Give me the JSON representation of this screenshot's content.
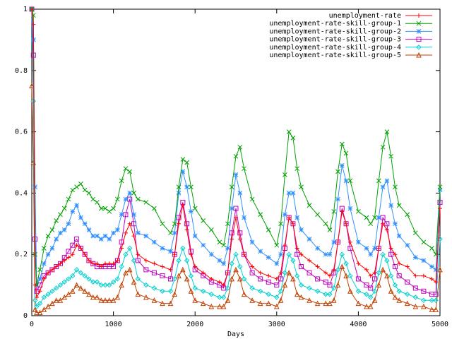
{
  "chart_data": {
    "type": "line",
    "xlabel": "Days",
    "ylabel": "",
    "title": "",
    "xlim": [
      0,
      5000
    ],
    "ylim": [
      0,
      1
    ],
    "x_ticks": [
      "0",
      "1000",
      "2000",
      "3000",
      "4000",
      "5000"
    ],
    "y_ticks": [
      "0",
      "0.2",
      "0.4",
      "0.6",
      "0.8",
      "1"
    ],
    "grid": false,
    "legend_position": "top-right",
    "series": [
      {
        "name": "unemployment-rate",
        "color": "#ff0000",
        "marker": "plus",
        "x": [
          0,
          20,
          40,
          60,
          100,
          150,
          200,
          250,
          300,
          350,
          400,
          450,
          500,
          550,
          600,
          650,
          700,
          750,
          800,
          850,
          900,
          950,
          1000,
          1050,
          1100,
          1150,
          1200,
          1250,
          1300,
          1400,
          1500,
          1600,
          1700,
          1750,
          1800,
          1850,
          1900,
          1950,
          2000,
          2100,
          2200,
          2300,
          2350,
          2400,
          2450,
          2500,
          2550,
          2600,
          2700,
          2800,
          2900,
          3000,
          3050,
          3100,
          3150,
          3200,
          3250,
          3300,
          3400,
          3500,
          3600,
          3650,
          3700,
          3750,
          3800,
          3850,
          3900,
          4000,
          4100,
          4150,
          4200,
          4250,
          4300,
          4350,
          4400,
          4450,
          4500,
          4600,
          4700,
          4800,
          4900,
          4950,
          5000
        ],
        "values": [
          1.0,
          0.95,
          0.1,
          0.06,
          0.08,
          0.12,
          0.14,
          0.15,
          0.16,
          0.17,
          0.18,
          0.19,
          0.2,
          0.23,
          0.22,
          0.2,
          0.18,
          0.17,
          0.17,
          0.16,
          0.17,
          0.17,
          0.17,
          0.18,
          0.22,
          0.27,
          0.3,
          0.26,
          0.2,
          0.18,
          0.17,
          0.16,
          0.15,
          0.2,
          0.3,
          0.36,
          0.28,
          0.2,
          0.16,
          0.14,
          0.12,
          0.11,
          0.1,
          0.14,
          0.25,
          0.32,
          0.25,
          0.2,
          0.16,
          0.14,
          0.13,
          0.12,
          0.14,
          0.23,
          0.32,
          0.3,
          0.22,
          0.2,
          0.18,
          0.16,
          0.14,
          0.13,
          0.15,
          0.24,
          0.34,
          0.3,
          0.24,
          0.17,
          0.15,
          0.13,
          0.14,
          0.22,
          0.3,
          0.28,
          0.22,
          0.2,
          0.17,
          0.16,
          0.13,
          0.13,
          0.12,
          0.11,
          0.35
        ]
      },
      {
        "name": "unemployment-rate-skill-group-1",
        "color": "#00a000",
        "marker": "cross",
        "x": [
          0,
          20,
          40,
          60,
          100,
          150,
          200,
          250,
          300,
          350,
          400,
          450,
          500,
          550,
          600,
          650,
          700,
          750,
          800,
          850,
          900,
          950,
          1000,
          1050,
          1100,
          1150,
          1200,
          1250,
          1300,
          1400,
          1500,
          1600,
          1700,
          1750,
          1800,
          1850,
          1900,
          1950,
          2000,
          2100,
          2200,
          2300,
          2350,
          2400,
          2450,
          2500,
          2550,
          2600,
          2700,
          2800,
          2900,
          3000,
          3050,
          3100,
          3150,
          3200,
          3250,
          3300,
          3400,
          3500,
          3600,
          3650,
          3700,
          3750,
          3800,
          3850,
          3900,
          4000,
          4100,
          4150,
          4200,
          4250,
          4300,
          4350,
          4400,
          4450,
          4500,
          4600,
          4700,
          4800,
          4900,
          4950,
          5000
        ],
        "values": [
          1.0,
          0.98,
          0.2,
          0.1,
          0.15,
          0.22,
          0.26,
          0.28,
          0.31,
          0.33,
          0.35,
          0.38,
          0.41,
          0.42,
          0.43,
          0.41,
          0.4,
          0.38,
          0.37,
          0.35,
          0.35,
          0.34,
          0.35,
          0.38,
          0.44,
          0.48,
          0.47,
          0.4,
          0.38,
          0.37,
          0.35,
          0.3,
          0.27,
          0.3,
          0.42,
          0.51,
          0.5,
          0.42,
          0.35,
          0.31,
          0.28,
          0.24,
          0.23,
          0.3,
          0.42,
          0.52,
          0.55,
          0.48,
          0.38,
          0.33,
          0.28,
          0.23,
          0.3,
          0.46,
          0.6,
          0.58,
          0.48,
          0.42,
          0.36,
          0.33,
          0.3,
          0.28,
          0.34,
          0.47,
          0.56,
          0.53,
          0.44,
          0.34,
          0.32,
          0.3,
          0.32,
          0.44,
          0.55,
          0.6,
          0.52,
          0.42,
          0.36,
          0.33,
          0.27,
          0.24,
          0.22,
          0.2,
          0.42
        ]
      },
      {
        "name": "unemployment-rate-skill-group-2",
        "color": "#2f8fff",
        "marker": "star",
        "x": [
          0,
          20,
          40,
          60,
          100,
          150,
          200,
          250,
          300,
          350,
          400,
          450,
          500,
          550,
          600,
          650,
          700,
          750,
          800,
          850,
          900,
          950,
          1000,
          1050,
          1100,
          1150,
          1200,
          1250,
          1300,
          1400,
          1500,
          1600,
          1700,
          1750,
          1800,
          1850,
          1900,
          1950,
          2000,
          2100,
          2200,
          2300,
          2350,
          2400,
          2450,
          2500,
          2550,
          2600,
          2700,
          2800,
          2900,
          3000,
          3050,
          3100,
          3150,
          3200,
          3250,
          3300,
          3400,
          3500,
          3600,
          3650,
          3700,
          3750,
          3800,
          3850,
          3900,
          4000,
          4100,
          4150,
          4200,
          4250,
          4300,
          4350,
          4400,
          4450,
          4500,
          4600,
          4700,
          4800,
          4900,
          4950,
          5000
        ],
        "values": [
          1.0,
          0.9,
          0.42,
          0.1,
          0.12,
          0.17,
          0.2,
          0.22,
          0.25,
          0.27,
          0.28,
          0.3,
          0.34,
          0.36,
          0.32,
          0.3,
          0.28,
          0.26,
          0.26,
          0.25,
          0.26,
          0.25,
          0.27,
          0.28,
          0.33,
          0.38,
          0.4,
          0.33,
          0.27,
          0.26,
          0.24,
          0.22,
          0.21,
          0.27,
          0.4,
          0.47,
          0.42,
          0.34,
          0.26,
          0.23,
          0.2,
          0.18,
          0.17,
          0.22,
          0.35,
          0.46,
          0.4,
          0.32,
          0.24,
          0.21,
          0.19,
          0.17,
          0.2,
          0.33,
          0.4,
          0.4,
          0.32,
          0.28,
          0.25,
          0.22,
          0.2,
          0.2,
          0.24,
          0.38,
          0.49,
          0.44,
          0.35,
          0.24,
          0.22,
          0.2,
          0.22,
          0.32,
          0.42,
          0.44,
          0.36,
          0.3,
          0.26,
          0.23,
          0.19,
          0.18,
          0.16,
          0.15,
          0.41
        ]
      },
      {
        "name": "unemployment-rate-skill-group-3",
        "color": "#c000c0",
        "marker": "square",
        "x": [
          0,
          20,
          40,
          60,
          100,
          150,
          200,
          250,
          300,
          350,
          400,
          450,
          500,
          550,
          600,
          650,
          700,
          750,
          800,
          850,
          900,
          950,
          1000,
          1050,
          1100,
          1150,
          1200,
          1250,
          1300,
          1400,
          1500,
          1600,
          1700,
          1750,
          1800,
          1850,
          1900,
          1950,
          2000,
          2100,
          2200,
          2300,
          2350,
          2400,
          2450,
          2500,
          2550,
          2600,
          2700,
          2800,
          2900,
          3000,
          3050,
          3100,
          3150,
          3200,
          3250,
          3300,
          3400,
          3500,
          3600,
          3650,
          3700,
          3750,
          3800,
          3850,
          3900,
          4000,
          4100,
          4150,
          4200,
          4250,
          4300,
          4350,
          4400,
          4450,
          4500,
          4600,
          4700,
          4800,
          4900,
          4950,
          5000
        ],
        "values": [
          1.0,
          0.85,
          0.25,
          0.08,
          0.1,
          0.13,
          0.14,
          0.15,
          0.16,
          0.17,
          0.19,
          0.21,
          0.23,
          0.25,
          0.22,
          0.2,
          0.18,
          0.17,
          0.16,
          0.16,
          0.16,
          0.16,
          0.16,
          0.18,
          0.24,
          0.33,
          0.38,
          0.3,
          0.18,
          0.15,
          0.14,
          0.13,
          0.12,
          0.2,
          0.32,
          0.37,
          0.3,
          0.21,
          0.15,
          0.13,
          0.11,
          0.1,
          0.09,
          0.14,
          0.27,
          0.35,
          0.27,
          0.2,
          0.14,
          0.12,
          0.11,
          0.1,
          0.12,
          0.22,
          0.32,
          0.3,
          0.2,
          0.16,
          0.14,
          0.12,
          0.11,
          0.1,
          0.14,
          0.24,
          0.35,
          0.3,
          0.22,
          0.12,
          0.1,
          0.09,
          0.12,
          0.22,
          0.32,
          0.3,
          0.2,
          0.16,
          0.13,
          0.11,
          0.09,
          0.08,
          0.07,
          0.07,
          0.37
        ]
      },
      {
        "name": "unemployment-rate-skill-group-4",
        "color": "#00d0d0",
        "marker": "diamond",
        "x": [
          0,
          20,
          40,
          60,
          100,
          150,
          200,
          250,
          300,
          350,
          400,
          450,
          500,
          550,
          600,
          650,
          700,
          750,
          800,
          850,
          900,
          950,
          1000,
          1050,
          1100,
          1150,
          1200,
          1250,
          1300,
          1400,
          1500,
          1600,
          1700,
          1750,
          1800,
          1850,
          1900,
          1950,
          2000,
          2100,
          2200,
          2300,
          2350,
          2400,
          2450,
          2500,
          2550,
          2600,
          2700,
          2800,
          2900,
          3000,
          3050,
          3100,
          3150,
          3200,
          3250,
          3300,
          3400,
          3500,
          3600,
          3650,
          3700,
          3750,
          3800,
          3850,
          3900,
          4000,
          4100,
          4150,
          4200,
          4250,
          4300,
          4350,
          4400,
          4450,
          4500,
          4600,
          4700,
          4800,
          4900,
          4950,
          5000
        ],
        "values": [
          1.0,
          0.7,
          0.05,
          0.03,
          0.04,
          0.06,
          0.07,
          0.08,
          0.09,
          0.1,
          0.11,
          0.12,
          0.13,
          0.15,
          0.14,
          0.13,
          0.12,
          0.11,
          0.11,
          0.1,
          0.1,
          0.1,
          0.11,
          0.12,
          0.16,
          0.2,
          0.22,
          0.18,
          0.12,
          0.1,
          0.09,
          0.08,
          0.08,
          0.12,
          0.18,
          0.22,
          0.18,
          0.13,
          0.09,
          0.08,
          0.07,
          0.06,
          0.06,
          0.09,
          0.17,
          0.2,
          0.16,
          0.12,
          0.09,
          0.08,
          0.07,
          0.06,
          0.08,
          0.14,
          0.2,
          0.18,
          0.13,
          0.1,
          0.09,
          0.08,
          0.07,
          0.07,
          0.09,
          0.15,
          0.2,
          0.17,
          0.13,
          0.08,
          0.07,
          0.06,
          0.08,
          0.14,
          0.2,
          0.18,
          0.13,
          0.1,
          0.08,
          0.07,
          0.06,
          0.05,
          0.05,
          0.05,
          0.25
        ]
      },
      {
        "name": "unemployment-rate-skill-group-5",
        "color": "#c04000",
        "marker": "triangle",
        "x": [
          0,
          20,
          40,
          60,
          100,
          150,
          200,
          250,
          300,
          350,
          400,
          450,
          500,
          550,
          600,
          650,
          700,
          750,
          800,
          850,
          900,
          950,
          1000,
          1050,
          1100,
          1150,
          1200,
          1250,
          1300,
          1400,
          1500,
          1600,
          1700,
          1750,
          1800,
          1850,
          1900,
          1950,
          2000,
          2100,
          2200,
          2300,
          2350,
          2400,
          2450,
          2500,
          2550,
          2600,
          2700,
          2800,
          2900,
          3000,
          3050,
          3100,
          3150,
          3200,
          3250,
          3300,
          3400,
          3500,
          3600,
          3650,
          3700,
          3750,
          3800,
          3850,
          3900,
          4000,
          4100,
          4150,
          4200,
          4250,
          4300,
          4350,
          4400,
          4450,
          4500,
          4600,
          4700,
          4800,
          4900,
          4950,
          5000
        ],
        "values": [
          0.75,
          0.5,
          0.02,
          0.01,
          0.01,
          0.02,
          0.03,
          0.04,
          0.05,
          0.05,
          0.06,
          0.07,
          0.08,
          0.1,
          0.09,
          0.08,
          0.07,
          0.06,
          0.06,
          0.05,
          0.05,
          0.05,
          0.05,
          0.06,
          0.1,
          0.14,
          0.15,
          0.11,
          0.07,
          0.06,
          0.05,
          0.04,
          0.04,
          0.07,
          0.13,
          0.15,
          0.12,
          0.08,
          0.05,
          0.04,
          0.03,
          0.03,
          0.03,
          0.05,
          0.12,
          0.15,
          0.12,
          0.07,
          0.05,
          0.04,
          0.04,
          0.03,
          0.05,
          0.1,
          0.14,
          0.12,
          0.07,
          0.06,
          0.05,
          0.04,
          0.04,
          0.04,
          0.05,
          0.1,
          0.16,
          0.13,
          0.08,
          0.04,
          0.03,
          0.03,
          0.05,
          0.1,
          0.15,
          0.13,
          0.08,
          0.06,
          0.05,
          0.04,
          0.03,
          0.03,
          0.02,
          0.02,
          0.15
        ]
      }
    ]
  }
}
